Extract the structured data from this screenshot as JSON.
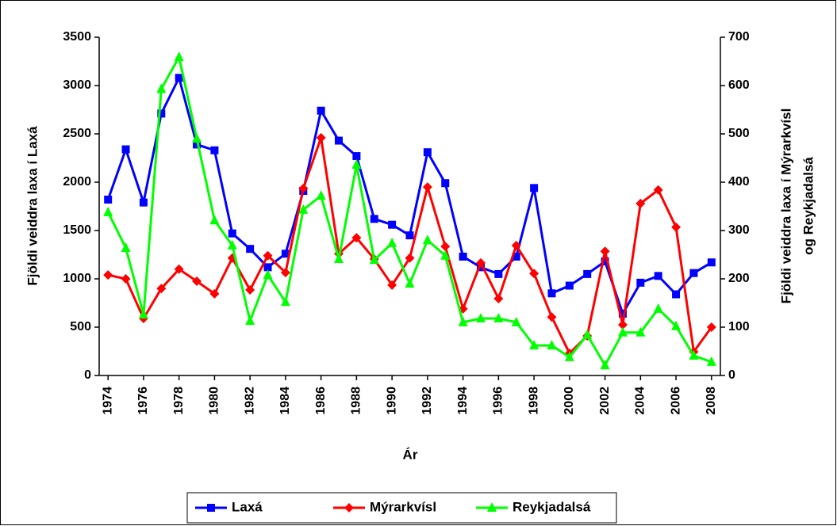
{
  "chart_data": {
    "type": "line",
    "xlabel": "Ár",
    "ylabel": "Fjöldi  veiddra laxa í Laxá",
    "y2label": [
      "Fjöldi veiddra laxa í  Mýrarkvísl",
      "og Reykjadalsá"
    ],
    "x": [
      1974,
      1975,
      1976,
      1977,
      1978,
      1979,
      1980,
      1981,
      1982,
      1983,
      1984,
      1985,
      1986,
      1987,
      1988,
      1989,
      1990,
      1991,
      1992,
      1993,
      1994,
      1995,
      1996,
      1997,
      1998,
      1999,
      2000,
      2001,
      2002,
      2003,
      2004,
      2005,
      2006,
      2007,
      2008
    ],
    "xlim": [
      1973.5,
      2008.5
    ],
    "xticks": [
      1974,
      1976,
      1978,
      1980,
      1982,
      1984,
      1986,
      1988,
      1990,
      1992,
      1994,
      1996,
      1998,
      2000,
      2002,
      2004,
      2006,
      2008
    ],
    "ylim": [
      0,
      3500
    ],
    "yticks": [
      0,
      500,
      1000,
      1500,
      2000,
      2500,
      3000,
      3500
    ],
    "y2lim": [
      0,
      700
    ],
    "y2ticks": [
      0,
      100,
      200,
      300,
      400,
      500,
      600,
      700
    ],
    "legend": "bottom",
    "series": [
      {
        "name": "Laxá",
        "color": "#0000ff",
        "marker": "square",
        "values": [
          1820,
          2340,
          1790,
          2710,
          3080,
          2390,
          2330,
          1470,
          1310,
          1120,
          1260,
          1910,
          2740,
          2430,
          2270,
          1620,
          1560,
          1450,
          2310,
          1990,
          1230,
          1120,
          1050,
          1230,
          1940,
          850,
          930,
          1050,
          1180,
          640,
          960,
          1030,
          840,
          1060,
          1170
        ]
      },
      {
        "name": "Mýrarkvísl",
        "color": "#ff0000",
        "marker": "diamond",
        "axis": "y2",
        "values": [
          208,
          200,
          118,
          180,
          220,
          195,
          169,
          243,
          177,
          248,
          213,
          387,
          492,
          252,
          285,
          241,
          187,
          243,
          390,
          267,
          138,
          233,
          159,
          269,
          211,
          121,
          46,
          82,
          257,
          105,
          356,
          384,
          307,
          49,
          100
        ]
      },
      {
        "name": "Reykjadalsá",
        "color": "#00ff00",
        "marker": "triangle",
        "axis": "y2",
        "values": [
          338,
          264,
          126,
          593,
          659,
          490,
          321,
          269,
          113,
          208,
          152,
          343,
          372,
          241,
          436,
          239,
          274,
          190,
          280,
          248,
          110,
          118,
          118,
          110,
          62,
          62,
          38,
          84,
          21,
          89,
          89,
          138,
          102,
          41,
          28
        ]
      }
    ]
  }
}
